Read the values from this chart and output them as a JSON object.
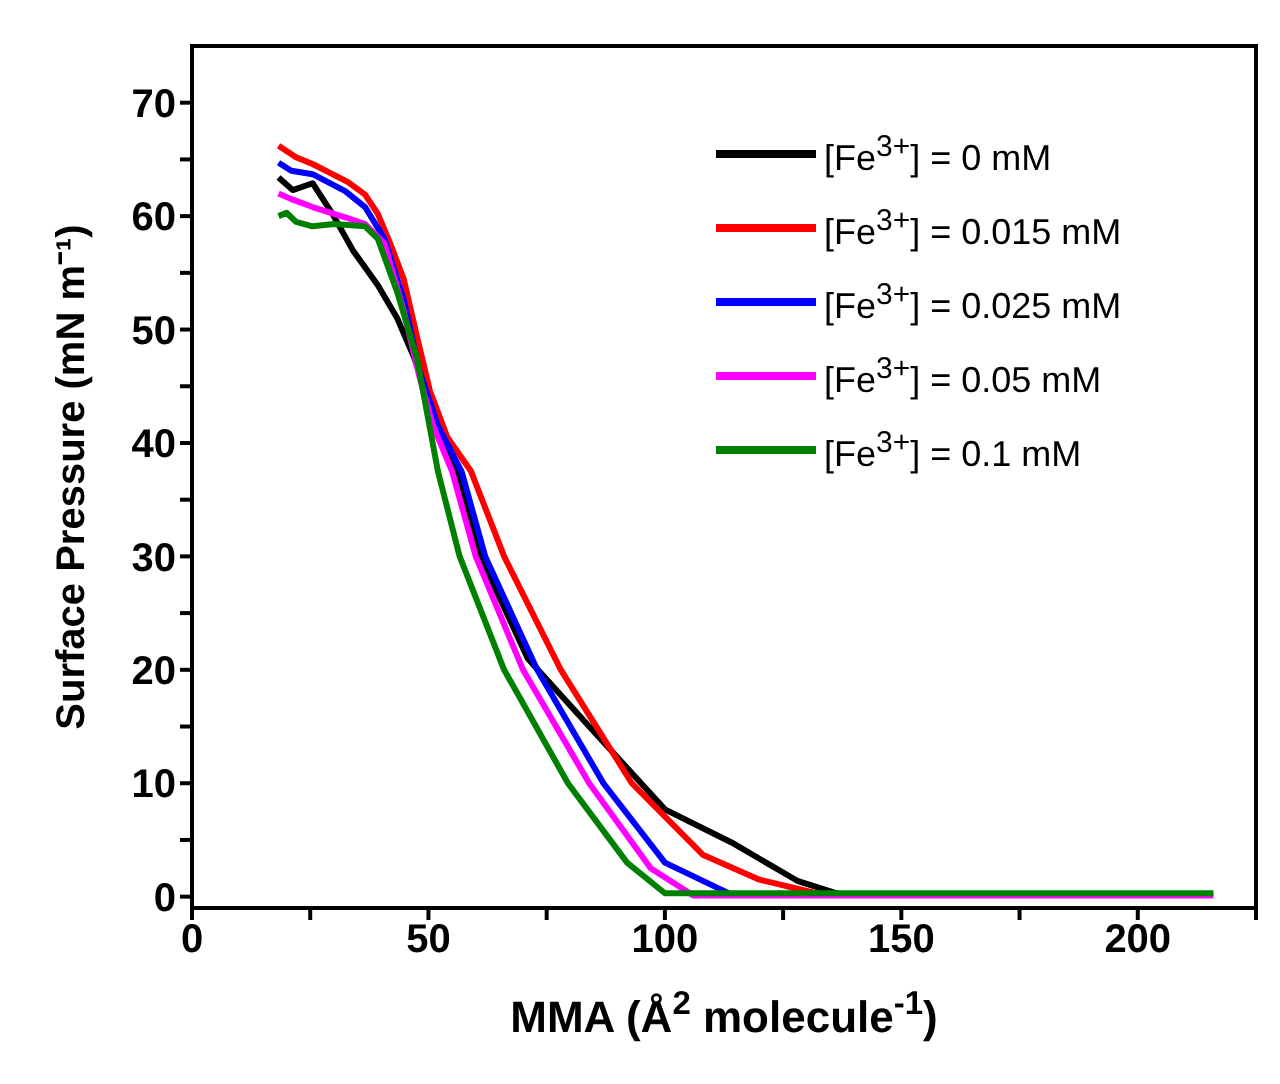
{
  "chart_data": {
    "type": "line",
    "xlabel": "MMA (Å$^{2}$ molecule$^{-1}$)",
    "ylabel": "Surface Pressure (mN m⁻¹)",
    "xlim": [
      0,
      225
    ],
    "ylim": [
      -1,
      75
    ],
    "xticks": [
      0,
      {
        "value": 25,
        "label": null
      },
      50,
      {
        "value": 75,
        "label": null
      },
      100,
      {
        "value": 125,
        "label": null
      },
      150,
      {
        "value": 175,
        "label": null
      },
      200,
      {
        "value": 225,
        "label": null
      }
    ],
    "yticks": [
      0,
      {
        "value": 5,
        "label": null
      },
      10,
      {
        "value": 15,
        "label": null
      },
      20,
      {
        "value": 25,
        "label": null
      },
      30,
      {
        "value": 35,
        "label": null
      },
      40,
      {
        "value": 45,
        "label": null
      },
      50,
      {
        "value": 55,
        "label": null
      },
      60,
      {
        "value": 65,
        "label": null
      },
      70
    ],
    "legend": "top right",
    "grid": false,
    "series": [
      {
        "name": "[Fe$^{3+}$] = 0 mM",
        "color": "#000000",
        "x": [
          18.3,
          21.3,
          25.5,
          29.7,
          34,
          39.3,
          43.4,
          47,
          50,
          53,
          56,
          61,
          71,
          84,
          100,
          114,
          128,
          137
        ],
        "values": [
          63.4,
          62.3,
          62.9,
          60.2,
          57,
          53.9,
          51,
          47.5,
          44,
          40.5,
          37.5,
          30,
          21,
          15,
          7.7,
          4.8,
          1.4,
          0.2
        ]
      },
      {
        "name": "[Fe$^{3+}$] = 0.015 mM",
        "color": "#ff0000",
        "x": [
          18.3,
          22,
          25.5,
          29.7,
          33,
          36.6,
          39.3,
          42,
          44.8,
          47.5,
          50.3,
          54,
          59,
          66,
          78,
          93,
          108,
          120,
          132
        ],
        "values": [
          66.2,
          65.2,
          64.6,
          63.7,
          63,
          61.9,
          60.2,
          57.5,
          54.4,
          49.5,
          44.6,
          40.5,
          37.5,
          30,
          20,
          10,
          3.7,
          1.5,
          0.3
        ]
      },
      {
        "name": "[Fe$^{3+}$] = 0.025 mM",
        "color": "#0000ff",
        "x": [
          18.3,
          21,
          25.5,
          32.4,
          36.6,
          40.7,
          44.8,
          48,
          52,
          57,
          62,
          73,
          87,
          100,
          114
        ],
        "values": [
          64.7,
          64,
          63.7,
          62.2,
          60.8,
          58,
          52.6,
          46.5,
          41.5,
          37.5,
          30,
          20,
          10,
          3,
          0.2
        ]
      },
      {
        "name": "[Fe$^{3+}$] = 0.05 mM",
        "color": "#ff00ff",
        "x": [
          18.3,
          21,
          25.5,
          32.4,
          36.6,
          40.7,
          44.8,
          48,
          51,
          55,
          60,
          70,
          84,
          97,
          106,
          150,
          180,
          216
        ],
        "values": [
          62,
          61.5,
          60.8,
          59.9,
          59.3,
          57.6,
          51.6,
          46,
          41.5,
          37.5,
          30,
          20,
          10,
          2.5,
          0.1,
          0.1,
          0.1,
          0.1
        ]
      },
      {
        "name": "[Fe$^{3+}$] = 0.1 mM",
        "color": "#008000",
        "x": [
          18.3,
          20,
          22,
          25.5,
          30,
          36.6,
          39.3,
          43.4,
          47.5,
          50,
          52,
          56.6,
          66,
          79.5,
          92,
          100,
          110,
          150,
          180,
          216
        ],
        "values": [
          60,
          60.3,
          59.5,
          59.1,
          59.3,
          59.1,
          58,
          53.3,
          47.6,
          42,
          37.5,
          30,
          20,
          10,
          3,
          0.3,
          0.3,
          0.3,
          0.3,
          0.3
        ]
      }
    ]
  }
}
